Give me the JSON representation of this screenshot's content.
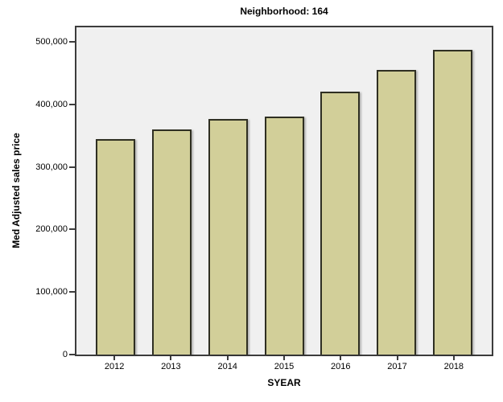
{
  "chart_data": {
    "type": "bar",
    "title": "Neighborhood: 164",
    "xlabel": "SYEAR",
    "ylabel": "Med Adjusted sales price",
    "categories": [
      "2012",
      "2013",
      "2014",
      "2015",
      "2016",
      "2017",
      "2018"
    ],
    "values": [
      345000,
      360000,
      377000,
      380000,
      420000,
      455000,
      487000
    ],
    "y_axis": {
      "min": 0,
      "max": 500000,
      "tick_interval": 100000,
      "tick_labels": [
        "0",
        "100,000",
        "200,000",
        "300,000",
        "400,000",
        "500,000"
      ]
    },
    "grid": false,
    "legend": "none",
    "colors": {
      "bar_fill": "#d2cf99",
      "bar_border": "#2f2f22",
      "plot_background": "#f0f0f0",
      "frame": "#3c3c3c",
      "text": "#000000",
      "page_background": "#ffffff"
    }
  }
}
